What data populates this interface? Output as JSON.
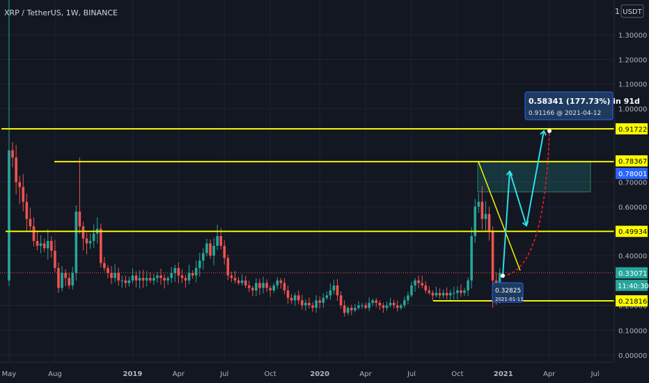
{
  "header": {
    "symbol_line": "XRP / TetherUS, 1W, BINANCE",
    "currency_button": "USDT",
    "currency_prefix": "1"
  },
  "chart_data": {
    "type": "candlestick",
    "y_axis": {
      "range": [
        0.0,
        1.4
      ],
      "ticks": [
        {
          "v": 1.3,
          "label": "1.30000"
        },
        {
          "v": 1.2,
          "label": "1.20000"
        },
        {
          "v": 1.1,
          "label": "1.10000"
        },
        {
          "v": 1.0,
          "label": "1.00000"
        },
        {
          "v": 0.7,
          "label": "0.70000"
        },
        {
          "v": 0.6,
          "label": "0.60000"
        },
        {
          "v": 0.4,
          "label": "0.40000"
        },
        {
          "v": 0.2,
          "label": "0.20000"
        },
        {
          "v": 0.1,
          "label": "0.10000"
        },
        {
          "v": 0.0,
          "label": "0.00000"
        }
      ]
    },
    "x_axis": {
      "ticks": [
        {
          "week": 0,
          "label": "May"
        },
        {
          "week": 13,
          "label": "Aug"
        },
        {
          "week": 35,
          "label": "2019"
        },
        {
          "week": 48,
          "label": "Apr"
        },
        {
          "week": 61,
          "label": "Jul"
        },
        {
          "week": 74,
          "label": "Oct"
        },
        {
          "week": 88,
          "label": "2020"
        },
        {
          "week": 101,
          "label": "Apr"
        },
        {
          "week": 114,
          "label": "Jul"
        },
        {
          "week": 127,
          "label": "Oct"
        },
        {
          "week": 140,
          "label": "2021"
        },
        {
          "week": 153,
          "label": "Apr"
        },
        {
          "week": 166,
          "label": "Jul"
        }
      ]
    },
    "last_close": 0.33071,
    "closes": [
      0.83,
      0.8,
      0.7,
      0.68,
      0.62,
      0.55,
      0.52,
      0.46,
      0.44,
      0.45,
      0.43,
      0.46,
      0.42,
      0.35,
      0.27,
      0.33,
      0.31,
      0.28,
      0.33,
      0.58,
      0.52,
      0.47,
      0.45,
      0.46,
      0.49,
      0.51,
      0.37,
      0.35,
      0.33,
      0.31,
      0.33,
      0.3,
      0.3,
      0.29,
      0.3,
      0.32,
      0.3,
      0.31,
      0.3,
      0.31,
      0.3,
      0.31,
      0.32,
      0.31,
      0.3,
      0.31,
      0.33,
      0.35,
      0.32,
      0.31,
      0.3,
      0.33,
      0.32,
      0.35,
      0.38,
      0.41,
      0.45,
      0.4,
      0.44,
      0.48,
      0.44,
      0.39,
      0.32,
      0.31,
      0.3,
      0.29,
      0.3,
      0.28,
      0.27,
      0.26,
      0.29,
      0.27,
      0.29,
      0.27,
      0.26,
      0.28,
      0.3,
      0.29,
      0.26,
      0.23,
      0.22,
      0.24,
      0.22,
      0.2,
      0.21,
      0.2,
      0.19,
      0.22,
      0.21,
      0.23,
      0.24,
      0.26,
      0.28,
      0.24,
      0.2,
      0.17,
      0.19,
      0.18,
      0.19,
      0.2,
      0.2,
      0.19,
      0.21,
      0.22,
      0.21,
      0.2,
      0.19,
      0.2,
      0.21,
      0.2,
      0.19,
      0.2,
      0.22,
      0.24,
      0.28,
      0.3,
      0.29,
      0.28,
      0.26,
      0.25,
      0.24,
      0.25,
      0.24,
      0.25,
      0.24,
      0.25,
      0.25,
      0.26,
      0.25,
      0.26,
      0.3,
      0.48,
      0.6,
      0.62,
      0.55,
      0.57,
      0.5,
      0.3,
      0.22,
      0.33071
    ],
    "levels": [
      {
        "value": 0.91722,
        "label": "0.91722"
      },
      {
        "value": 0.78367,
        "label": "0.78367"
      },
      {
        "value": 0.78001,
        "label": "0.78001"
      },
      {
        "value": 0.49934,
        "label": "0.49934"
      },
      {
        "value": 0.21816,
        "label": "0.21816"
      }
    ],
    "countdown": "11:40:30",
    "measure": {
      "change_label": "0.58341 (177.73%) in 91d",
      "target_label": "0.91166 @ 2021-04-12",
      "start_price": "0.32825",
      "start_date": "2021-01-11"
    }
  }
}
